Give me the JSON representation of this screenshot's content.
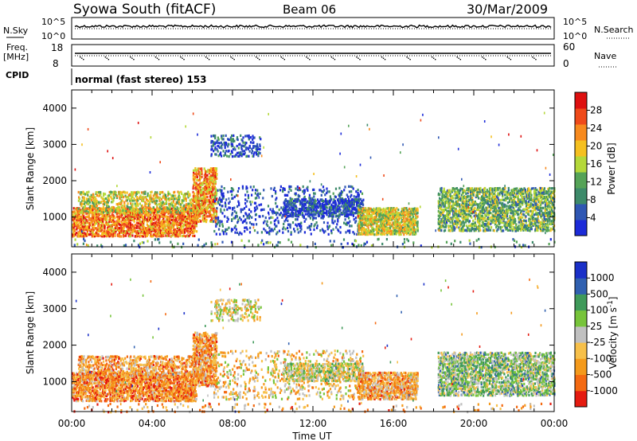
{
  "header": {
    "title": "Syowa South (fitACF)",
    "beam": "Beam 06",
    "date": "30/Mar/2009"
  },
  "top_panels": {
    "nsky_label": "N.Sky",
    "nsearch_label": "N.Search",
    "noise_ticks_left": [
      "10^5",
      "10^0"
    ],
    "noise_ticks_right": [
      "10^5",
      "10^0"
    ],
    "freq_label_1": "Freq.",
    "freq_label_2": "[MHz]",
    "freq_ticks_left": [
      "18",
      "8"
    ],
    "nave_label": "Nave",
    "nave_ticks_right": [
      "60",
      "0"
    ],
    "cpid_label": "CPID",
    "cpid_text": "normal (fast stereo) 153"
  },
  "x_axis": {
    "label": "Time UT",
    "ticks": [
      "00:00",
      "04:00",
      "08:00",
      "12:00",
      "16:00",
      "20:00",
      "00:00"
    ]
  },
  "chart_data": [
    {
      "type": "heatmap",
      "quantity": "Power",
      "colorbar_label": "Power [dB]",
      "ylabel": "Slant Range [km]",
      "xlabel": "",
      "x_range_hours": [
        0,
        24
      ],
      "ylim": [
        180,
        4500
      ],
      "y_ticks": [
        1000,
        2000,
        3000,
        4000
      ],
      "colorbar_ticks": [
        "4",
        "8",
        "12",
        "16",
        "20",
        "24",
        "28"
      ],
      "colorbar_range": [
        0,
        30
      ],
      "colors": [
        "#1c2bd8",
        "#2f57b3",
        "#3d8a6a",
        "#55a357",
        "#b4d83a",
        "#f5c020",
        "#f78a1e",
        "#ef4a1a",
        "#de1010"
      ],
      "echo_regions": [
        {
          "t0": 0.0,
          "t1": 6.2,
          "r0": 500,
          "r1": 1300,
          "density": 0.55,
          "level": 0.75
        },
        {
          "t0": 0.3,
          "t1": 6.6,
          "r0": 1150,
          "r1": 1750,
          "density": 0.35,
          "level": 0.55
        },
        {
          "t0": 6.0,
          "t1": 7.2,
          "r0": 900,
          "r1": 2400,
          "density": 0.5,
          "level": 0.7
        },
        {
          "t0": 6.9,
          "t1": 9.4,
          "r0": 2700,
          "r1": 3300,
          "density": 0.25,
          "level": 0.15
        },
        {
          "t0": 7.0,
          "t1": 14.5,
          "r0": 550,
          "r1": 1900,
          "density": 0.12,
          "level": 0.12
        },
        {
          "t0": 10.5,
          "t1": 14.5,
          "r0": 1050,
          "r1": 1550,
          "density": 0.45,
          "level": 0.12
        },
        {
          "t0": 14.2,
          "t1": 17.2,
          "r0": 550,
          "r1": 1300,
          "density": 0.55,
          "level": 0.55
        },
        {
          "t0": 18.2,
          "t1": 24.0,
          "r0": 650,
          "r1": 1850,
          "density": 0.45,
          "level": 0.4
        },
        {
          "t0": 0.0,
          "t1": 24.0,
          "r0": 200,
          "r1": 450,
          "density": 0.04,
          "level": 0.3
        }
      ]
    },
    {
      "type": "heatmap",
      "quantity": "Velocity",
      "colorbar_label": "Velocity [m s^-1]",
      "ylabel": "Slant Range [km]",
      "xlabel": "Time UT",
      "x_range_hours": [
        0,
        24
      ],
      "ylim": [
        180,
        4500
      ],
      "y_ticks": [
        1000,
        2000,
        3000,
        4000
      ],
      "colorbar_ticks": [
        "1000",
        "500",
        "100",
        "25",
        "-25",
        "-100",
        "-500",
        "-1000"
      ],
      "colorbar_range": [
        -1200,
        1200
      ],
      "colors": [
        "#e51b10",
        "#f46a12",
        "#f49a1c",
        "#f7c04a",
        "#c0c0c0",
        "#77c43a",
        "#3f9a5a",
        "#3060b0",
        "#1a30c8"
      ],
      "echo_regions": [
        {
          "t0": 0.0,
          "t1": 6.2,
          "r0": 500,
          "r1": 1300,
          "density": 0.55,
          "level": 0.25
        },
        {
          "t0": 0.3,
          "t1": 6.6,
          "r0": 1150,
          "r1": 1750,
          "density": 0.35,
          "level": 0.3
        },
        {
          "t0": 6.0,
          "t1": 7.2,
          "r0": 900,
          "r1": 2400,
          "density": 0.5,
          "level": 0.3
        },
        {
          "t0": 6.9,
          "t1": 9.4,
          "r0": 2700,
          "r1": 3300,
          "density": 0.25,
          "level": 0.45
        },
        {
          "t0": 7.0,
          "t1": 14.5,
          "r0": 550,
          "r1": 1900,
          "density": 0.12,
          "level": 0.4
        },
        {
          "t0": 10.5,
          "t1": 14.5,
          "r0": 1050,
          "r1": 1550,
          "density": 0.45,
          "level": 0.5
        },
        {
          "t0": 14.2,
          "t1": 17.2,
          "r0": 550,
          "r1": 1300,
          "density": 0.55,
          "level": 0.32
        },
        {
          "t0": 18.2,
          "t1": 24.0,
          "r0": 650,
          "r1": 1850,
          "density": 0.45,
          "level": 0.6
        },
        {
          "t0": 0.0,
          "t1": 24.0,
          "r0": 200,
          "r1": 450,
          "density": 0.04,
          "level": 0.3
        }
      ]
    }
  ]
}
